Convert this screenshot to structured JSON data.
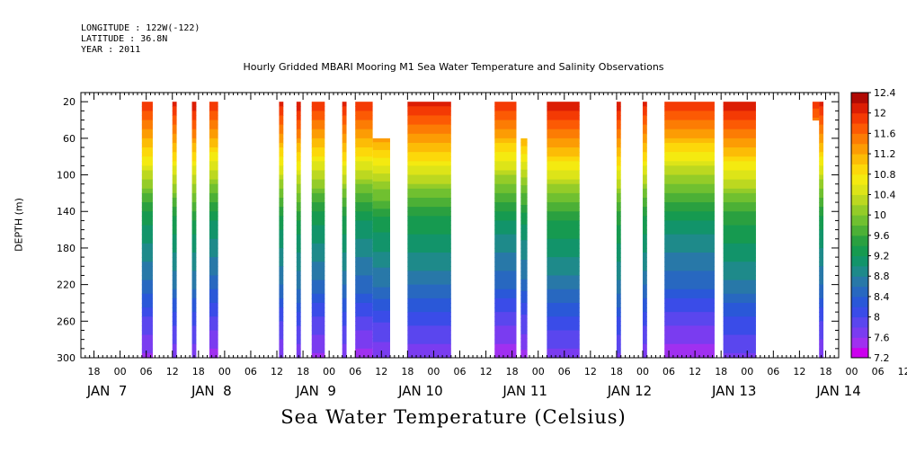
{
  "header": {
    "longitude": "LONGITUDE : 122W(-122)",
    "latitude": "LATITUDE : 36.8N",
    "year": "YEAR : 2011"
  },
  "chart_data": {
    "type": "heatmap",
    "title": "Hourly Gridded MBARI Mooring M1 Sea Water Temperature and Salinity Observations",
    "xlabel": "Sea Water Temperature (Celsius)",
    "ylabel": "DEPTH (m)",
    "x_range_hours_from_jan7_00": [
      -9,
      165
    ],
    "x_hour_ticks": [
      "18",
      "00",
      "06",
      "12",
      "18",
      "00",
      "06",
      "12",
      "18",
      "00",
      "06",
      "12",
      "18",
      "00",
      "06",
      "12",
      "18",
      "00",
      "06",
      "12",
      "18",
      "00",
      "06",
      "12",
      "18",
      "00",
      "06",
      "12",
      "18",
      "00",
      "06",
      "12"
    ],
    "x_day_labels": [
      "JAN  7",
      "JAN  8",
      "JAN  9",
      "JAN 10",
      "JAN 11",
      "JAN 12",
      "JAN 13",
      "JAN 14"
    ],
    "y_ticks": [
      20,
      60,
      100,
      140,
      180,
      220,
      260,
      300
    ],
    "ylim": [
      300,
      10
    ],
    "colorbar": {
      "levels": [
        7.2,
        7.4,
        7.6,
        7.8,
        8.0,
        8.2,
        8.4,
        8.6,
        8.8,
        9.0,
        9.2,
        9.4,
        9.6,
        9.8,
        10.0,
        10.2,
        10.4,
        10.6,
        10.8,
        11.0,
        11.2,
        11.4,
        11.6,
        11.8,
        12.0,
        12.2,
        12.4
      ],
      "tick_labels": [
        "7.2",
        "7.6",
        "8",
        "8.4",
        "8.8",
        "9.2",
        "9.6",
        "10",
        "10.4",
        "10.8",
        "11.2",
        "11.6",
        "12",
        "12.4"
      ],
      "colors": [
        "#cc00ee",
        "#a030f0",
        "#7a3cf0",
        "#5a46ee",
        "#3a4ce8",
        "#2a58d8",
        "#2868c0",
        "#2878a8",
        "#1e8a8a",
        "#12946a",
        "#169a50",
        "#2aa040",
        "#4cb036",
        "#70c030",
        "#94cc28",
        "#bcd820",
        "#dde418",
        "#f4ea10",
        "#fcd80a",
        "#fcbc06",
        "#fc9c04",
        "#fc7c04",
        "#fc5a04",
        "#f43a04",
        "#dc1e04",
        "#b00a04"
      ]
    },
    "data_blocks": [
      {
        "start_h": 5,
        "end_h": 7.5,
        "top_m": 20,
        "bottom_m": 300
      },
      {
        "start_h": 12,
        "end_h": 13,
        "top_m": 20,
        "bottom_m": 300
      },
      {
        "start_h": 16.5,
        "end_h": 17.5,
        "top_m": 20,
        "bottom_m": 300
      },
      {
        "start_h": 20.5,
        "end_h": 22.5,
        "top_m": 20,
        "bottom_m": 300
      },
      {
        "start_h": 36.5,
        "end_h": 37.5,
        "top_m": 20,
        "bottom_m": 300
      },
      {
        "start_h": 40.5,
        "end_h": 41.5,
        "top_m": 20,
        "bottom_m": 300
      },
      {
        "start_h": 44,
        "end_h": 47,
        "top_m": 20,
        "bottom_m": 300
      },
      {
        "start_h": 51,
        "end_h": 52,
        "top_m": 20,
        "bottom_m": 300
      },
      {
        "start_h": 54,
        "end_h": 58,
        "top_m": 20,
        "bottom_m": 300
      },
      {
        "start_h": 58,
        "end_h": 62,
        "top_m": 60,
        "bottom_m": 300
      },
      {
        "start_h": 66,
        "end_h": 76,
        "top_m": 20,
        "bottom_m": 300
      },
      {
        "start_h": 86,
        "end_h": 91,
        "top_m": 20,
        "bottom_m": 300
      },
      {
        "start_h": 92,
        "end_h": 93.5,
        "top_m": 60,
        "bottom_m": 300
      },
      {
        "start_h": 98,
        "end_h": 105.5,
        "top_m": 20,
        "bottom_m": 300
      },
      {
        "start_h": 114,
        "end_h": 115,
        "top_m": 20,
        "bottom_m": 300
      },
      {
        "start_h": 120,
        "end_h": 121,
        "top_m": 20,
        "bottom_m": 300
      },
      {
        "start_h": 125,
        "end_h": 136.5,
        "top_m": 20,
        "bottom_m": 300
      },
      {
        "start_h": 138.5,
        "end_h": 146,
        "top_m": 20,
        "bottom_m": 300
      },
      {
        "start_h": 159,
        "end_h": 160.5,
        "top_m": 20,
        "bottom_m": 40
      },
      {
        "start_h": 160.5,
        "end_h": 161.5,
        "top_m": 20,
        "bottom_m": 300
      }
    ],
    "temperature_profile": [
      {
        "depth": 20,
        "temp": 12.1
      },
      {
        "depth": 60,
        "temp": 11.3
      },
      {
        "depth": 90,
        "temp": 10.6
      },
      {
        "depth": 120,
        "temp": 9.9
      },
      {
        "depth": 150,
        "temp": 9.3
      },
      {
        "depth": 180,
        "temp": 9.0
      },
      {
        "depth": 220,
        "temp": 8.6
      },
      {
        "depth": 260,
        "temp": 8.0
      },
      {
        "depth": 300,
        "temp": 7.6
      }
    ]
  }
}
